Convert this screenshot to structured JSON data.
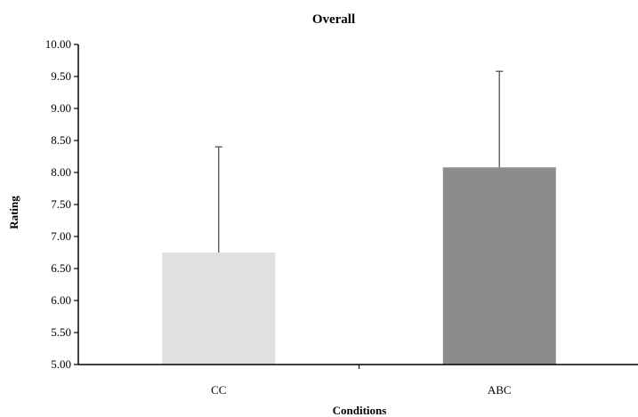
{
  "chart_data": {
    "type": "bar",
    "title": "Overall",
    "xlabel": "Conditions",
    "ylabel": "Rating",
    "categories": [
      "CC",
      "ABC"
    ],
    "values": [
      6.75,
      8.08
    ],
    "error_upper": [
      8.4,
      9.58
    ],
    "ylim": [
      5.0,
      10.0
    ],
    "yticks": [
      "5.00",
      "5.50",
      "6.00",
      "6.50",
      "7.00",
      "7.50",
      "8.00",
      "8.50",
      "9.00",
      "9.50",
      "10.00"
    ],
    "grid": false,
    "legend": "none",
    "colors": [
      "#e0e0e0",
      "#8c8c8c"
    ],
    "axis_color": "#000000",
    "error_bar_color": "#666666"
  }
}
